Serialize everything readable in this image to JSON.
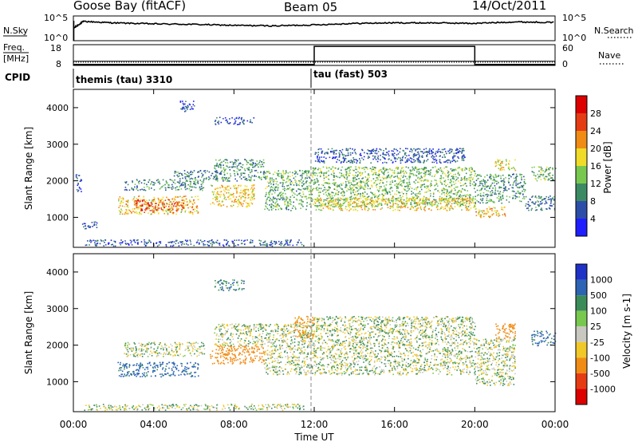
{
  "header": {
    "site": "Goose Bay (fitACF)",
    "beam": "Beam 05",
    "date": "14/Oct/2011"
  },
  "noise_panel": {
    "left_label": "N.Sky",
    "right_label": "N.Search",
    "left_ticks": [
      "10^5",
      "10^0"
    ],
    "right_ticks": [
      "10^5",
      "10^0"
    ]
  },
  "freq_panel": {
    "left_label_1": "Freq.",
    "left_label_2": "[MHz]",
    "right_label": "Nave",
    "left_ticks": [
      "18",
      "8"
    ],
    "right_ticks": [
      "60",
      "0"
    ]
  },
  "cpid_panel": {
    "label": "CPID",
    "modes": [
      {
        "name": "themis (tau) 3310",
        "start_hour": 0
      },
      {
        "name": "tau (fast) 503",
        "start_hour": 12
      }
    ]
  },
  "time_axis": {
    "title": "Time UT",
    "ticks": [
      "00:00",
      "04:00",
      "08:00",
      "12:00",
      "16:00",
      "20:00",
      "00:00"
    ]
  },
  "range_axis": {
    "title": "Slant Range [km]",
    "ticks": [
      "1000",
      "2000",
      "3000",
      "4000"
    ]
  },
  "power_scale": {
    "title": "Power [dB]",
    "ticks": [
      "4",
      "8",
      "12",
      "16",
      "20",
      "24",
      "28"
    ],
    "colors": [
      "#1e1eff",
      "#2d4ea8",
      "#3c8a64",
      "#78c850",
      "#f0dc28",
      "#f08c14",
      "#e63c14",
      "#dc0000"
    ]
  },
  "velocity_scale": {
    "title": "Velocity [m s-1]",
    "ticks": [
      "1000",
      "500",
      "100",
      "25",
      "-25",
      "-100",
      "-500",
      "-1000"
    ],
    "colors": [
      "#1e32c8",
      "#2d64b4",
      "#3c8c5a",
      "#78c850",
      "#c8c8c0",
      "#f0c828",
      "#f08c14",
      "#e63c14",
      "#dc0000"
    ]
  },
  "chart_data": [
    {
      "type": "line",
      "title": "N.Sky / N.Search",
      "x": [
        0,
        0.5,
        2,
        4,
        6,
        8,
        10,
        12,
        14,
        16,
        18,
        20,
        22,
        24
      ],
      "ylim_label": [
        "10^0",
        "10^5"
      ],
      "series": [
        {
          "values": [
            2.5,
            3.9,
            3.6,
            3.4,
            3.3,
            3.1,
            3.0,
            3.2,
            3.5,
            3.6,
            3.6,
            3.5,
            3.8,
            3.7
          ]
        }
      ]
    },
    {
      "type": "line",
      "title": "Freq / Nave",
      "x": [
        0,
        6,
        12,
        14,
        18,
        20,
        24
      ],
      "series": [
        {
          "name": "Freq. [MHz]",
          "values": [
            10,
            10,
            10,
            10,
            10,
            10,
            10
          ]
        },
        {
          "name": "Nave",
          "values": [
            3,
            3,
            55,
            55,
            55,
            3,
            3
          ]
        }
      ]
    },
    {
      "type": "heatmap",
      "title": "Power [dB]",
      "xlabel": "Time UT",
      "ylabel": "Slant Range [km]",
      "xlim": [
        0,
        24
      ],
      "ylim": [
        180,
        4500
      ],
      "regions": [
        {
          "t": [
            0.1,
            0.4
          ],
          "r": [
            1700,
            2200
          ],
          "p": 6
        },
        {
          "t": [
            0.4,
            1.2
          ],
          "r": [
            700,
            900
          ],
          "p": 5
        },
        {
          "t": [
            2.2,
            6.2
          ],
          "r": [
            1100,
            1600
          ],
          "p": 20
        },
        {
          "t": [
            3.0,
            5.5
          ],
          "r": [
            1200,
            1500
          ],
          "p": 25
        },
        {
          "t": [
            2.5,
            6.5
          ],
          "r": [
            1750,
            2050
          ],
          "p": 10
        },
        {
          "t": [
            5.0,
            7.5
          ],
          "r": [
            2050,
            2300
          ],
          "p": 9
        },
        {
          "t": [
            6.8,
            9.0
          ],
          "r": [
            1300,
            1900
          ],
          "p": 19
        },
        {
          "t": [
            7.0,
            9.5
          ],
          "r": [
            2000,
            2600
          ],
          "p": 10
        },
        {
          "t": [
            9.5,
            11.8
          ],
          "r": [
            1200,
            2300
          ],
          "p": 12
        },
        {
          "t": [
            11.8,
            20.0
          ],
          "r": [
            1300,
            2400
          ],
          "p": 13
        },
        {
          "t": [
            12.0,
            20.0
          ],
          "r": [
            1200,
            1550
          ],
          "p": 19
        },
        {
          "t": [
            12.0,
            19.5
          ],
          "r": [
            2500,
            2900
          ],
          "p": 6
        },
        {
          "t": [
            20.0,
            21.5
          ],
          "r": [
            1000,
            1300
          ],
          "p": 20
        },
        {
          "t": [
            20.0,
            22.5
          ],
          "r": [
            1400,
            2200
          ],
          "p": 10
        },
        {
          "t": [
            21.0,
            22.0
          ],
          "r": [
            2300,
            2600
          ],
          "p": 18
        },
        {
          "t": [
            22.5,
            24.0
          ],
          "r": [
            1200,
            1600
          ],
          "p": 8
        },
        {
          "t": [
            22.8,
            24.0
          ],
          "r": [
            2000,
            2400
          ],
          "p": 13
        },
        {
          "t": [
            7.0,
            9.0
          ],
          "r": [
            3550,
            3750
          ],
          "p": 5
        },
        {
          "t": [
            5.3,
            6.0
          ],
          "r": [
            3900,
            4200
          ],
          "p": 4
        },
        {
          "t": [
            0.5,
            11.5
          ],
          "r": [
            230,
            400
          ],
          "p": 6
        }
      ]
    },
    {
      "type": "heatmap",
      "title": "Velocity [m s-1]",
      "xlabel": "Time UT",
      "ylabel": "Slant Range [km]",
      "xlim": [
        0,
        24
      ],
      "ylim": [
        180,
        4500
      ],
      "regions": [
        {
          "t": [
            2.2,
            6.2
          ],
          "r": [
            1150,
            1550
          ],
          "v": 150
        },
        {
          "t": [
            2.5,
            6.5
          ],
          "r": [
            1700,
            2100
          ],
          "v": 0
        },
        {
          "t": [
            6.8,
            9.5
          ],
          "r": [
            1500,
            2000
          ],
          "v": -300
        },
        {
          "t": [
            7.0,
            9.5
          ],
          "r": [
            2000,
            2600
          ],
          "v": 0
        },
        {
          "t": [
            9.5,
            12.0
          ],
          "r": [
            1200,
            2600
          ],
          "v": 0
        },
        {
          "t": [
            11.0,
            12.0
          ],
          "r": [
            2200,
            2800
          ],
          "v": -150
        },
        {
          "t": [
            12.0,
            20.0
          ],
          "r": [
            1200,
            2800
          ],
          "v": 0
        },
        {
          "t": [
            20.0,
            22.0
          ],
          "r": [
            900,
            2200
          ],
          "v": 0
        },
        {
          "t": [
            21.0,
            22.0
          ],
          "r": [
            2200,
            2600
          ],
          "v": -300
        },
        {
          "t": [
            22.8,
            24.0
          ],
          "r": [
            2000,
            2400
          ],
          "v": 150
        },
        {
          "t": [
            7.0,
            8.5
          ],
          "r": [
            3500,
            3800
          ],
          "v": 80
        },
        {
          "t": [
            0.5,
            11.5
          ],
          "r": [
            230,
            400
          ],
          "v": 0
        }
      ]
    }
  ]
}
